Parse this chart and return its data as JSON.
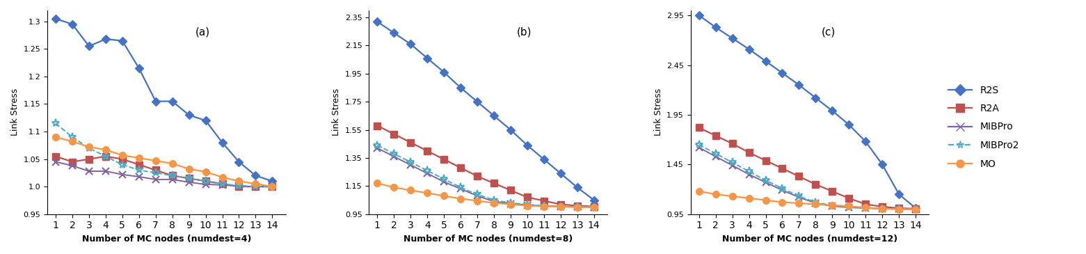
{
  "x": [
    1,
    2,
    3,
    4,
    5,
    6,
    7,
    8,
    9,
    10,
    11,
    12,
    13,
    14
  ],
  "subplot_labels": [
    "(a)",
    "(b)",
    "(c)"
  ],
  "xlabels": [
    "Number of MC nodes (numdest=4)",
    "Number of MC nodes (numdest=8)",
    "Number of MC nodes (numdest=12)"
  ],
  "ylabel": "Link Stress",
  "series_names": [
    "R2S",
    "R2A",
    "MIBPro",
    "MIBPro2",
    "MO"
  ],
  "series_colors": [
    "#4472c4",
    "#c0504d",
    "#8064a2",
    "#4bacc6",
    "#f79646"
  ],
  "series_markers": [
    "D",
    "s",
    "x",
    "*",
    "o"
  ],
  "data": {
    "a": {
      "R2S": [
        1.305,
        1.295,
        1.255,
        1.268,
        1.265,
        1.215,
        1.155,
        1.155,
        1.13,
        1.12,
        1.08,
        1.045,
        1.02,
        1.01
      ],
      "R2A": [
        1.055,
        1.045,
        1.05,
        1.055,
        1.05,
        1.04,
        1.03,
        1.02,
        1.015,
        1.01,
        1.005,
        1.0,
        1.0,
        1.0
      ],
      "MIBPro": [
        1.045,
        1.038,
        1.028,
        1.028,
        1.022,
        1.018,
        1.013,
        1.013,
        1.008,
        1.004,
        1.003,
        1.001,
        1.0,
        1.0
      ],
      "MIBPro2": [
        1.115,
        1.09,
        1.07,
        1.055,
        1.04,
        1.03,
        1.025,
        1.02,
        1.015,
        1.01,
        1.005,
        1.002,
        1.0,
        1.0
      ],
      "MO": [
        1.09,
        1.082,
        1.072,
        1.067,
        1.057,
        1.052,
        1.047,
        1.042,
        1.032,
        1.027,
        1.017,
        1.01,
        1.005,
        1.0
      ]
    },
    "b": {
      "R2S": [
        2.32,
        2.24,
        2.16,
        2.06,
        1.96,
        1.85,
        1.75,
        1.65,
        1.55,
        1.44,
        1.34,
        1.24,
        1.14,
        1.05
      ],
      "R2A": [
        1.58,
        1.52,
        1.46,
        1.4,
        1.34,
        1.28,
        1.22,
        1.17,
        1.12,
        1.07,
        1.045,
        1.02,
        1.01,
        1.005
      ],
      "MIBPro": [
        1.42,
        1.36,
        1.3,
        1.24,
        1.18,
        1.13,
        1.08,
        1.04,
        1.025,
        1.015,
        1.008,
        1.004,
        1.002,
        1.0
      ],
      "MIBPro2": [
        1.44,
        1.38,
        1.32,
        1.26,
        1.2,
        1.14,
        1.09,
        1.05,
        1.03,
        1.018,
        1.01,
        1.005,
        1.002,
        1.0
      ],
      "MO": [
        1.17,
        1.14,
        1.12,
        1.1,
        1.08,
        1.06,
        1.045,
        1.03,
        1.02,
        1.01,
        1.005,
        1.002,
        1.0,
        1.0
      ]
    },
    "c": {
      "R2S": [
        2.95,
        2.83,
        2.72,
        2.61,
        2.49,
        2.37,
        2.25,
        2.12,
        1.99,
        1.85,
        1.68,
        1.45,
        1.15,
        1.01
      ],
      "R2A": [
        1.82,
        1.74,
        1.66,
        1.57,
        1.49,
        1.41,
        1.33,
        1.25,
        1.18,
        1.11,
        1.05,
        1.025,
        1.01,
        1.005
      ],
      "MIBPro": [
        1.62,
        1.53,
        1.44,
        1.35,
        1.27,
        1.19,
        1.12,
        1.06,
        1.03,
        1.018,
        1.01,
        1.005,
        1.002,
        1.0
      ],
      "MIBPro2": [
        1.65,
        1.56,
        1.47,
        1.38,
        1.29,
        1.21,
        1.13,
        1.07,
        1.035,
        1.02,
        1.012,
        1.006,
        1.002,
        1.0
      ],
      "MO": [
        1.18,
        1.15,
        1.13,
        1.11,
        1.09,
        1.07,
        1.06,
        1.05,
        1.04,
        1.03,
        1.015,
        1.005,
        1.0,
        1.0
      ]
    }
  },
  "ylims": {
    "a": [
      0.95,
      1.32
    ],
    "b": [
      0.95,
      2.4
    ],
    "c": [
      0.95,
      3.0
    ]
  },
  "yticks": {
    "a": [
      0.95,
      1.0,
      1.05,
      1.1,
      1.15,
      1.2,
      1.25,
      1.3
    ],
    "b": [
      0.95,
      1.15,
      1.35,
      1.55,
      1.75,
      1.95,
      2.15,
      2.35
    ],
    "c": [
      0.95,
      1.45,
      1.95,
      2.45,
      2.95
    ]
  },
  "background_color": "#ffffff"
}
